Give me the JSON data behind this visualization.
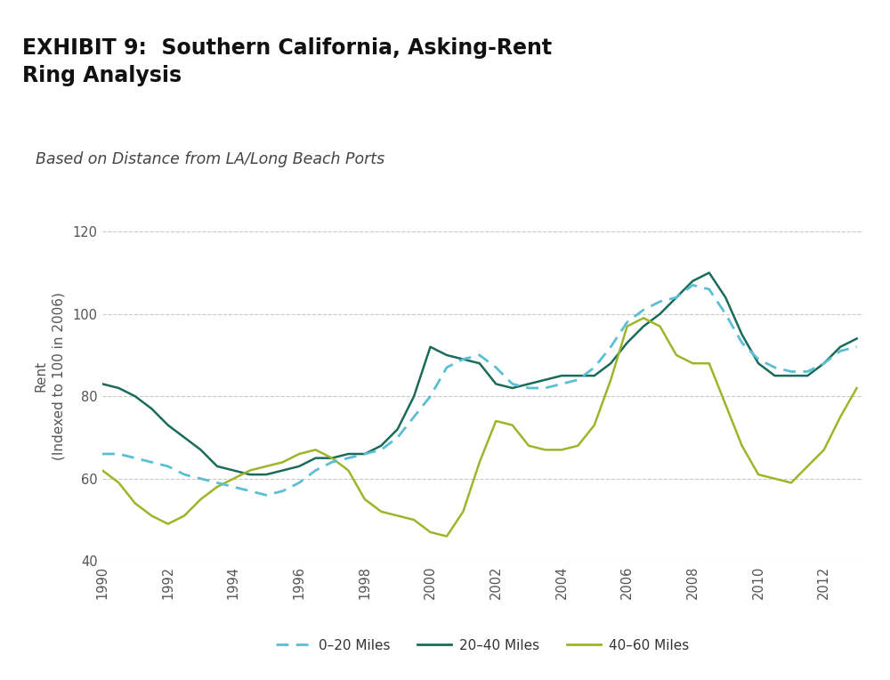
{
  "title_main": "EXHIBIT 9:  Southern California, Asking-Rent\nRing Analysis",
  "subtitle": "Based on Distance from LA/Long Beach Ports",
  "ylabel": "Rent\n(Indexed to 100 in 2006)",
  "ylim": [
    40,
    130
  ],
  "yticks": [
    40,
    60,
    80,
    100,
    120
  ],
  "xlim": [
    1990,
    2013.2
  ],
  "xticks": [
    1990,
    1992,
    1994,
    1996,
    1998,
    2000,
    2002,
    2004,
    2006,
    2008,
    2010,
    2012
  ],
  "bg_title": "#d8d8d8",
  "bg_figure": "#ffffff",
  "color_0_20": "#5bbfd4",
  "color_20_40": "#1a6b5c",
  "color_40_60": "#9db52a",
  "series_0_20": {
    "x": [
      1990,
      1990.5,
      1991,
      1991.5,
      1992,
      1992.5,
      1993,
      1993.5,
      1994,
      1994.5,
      1995,
      1995.5,
      1996,
      1996.5,
      1997,
      1997.5,
      1998,
      1998.5,
      1999,
      1999.5,
      2000,
      2000.5,
      2001,
      2001.5,
      2002,
      2002.5,
      2003,
      2003.5,
      2004,
      2004.5,
      2005,
      2005.5,
      2006,
      2006.5,
      2007,
      2007.5,
      2008,
      2008.5,
      2009,
      2009.5,
      2010,
      2010.5,
      2011,
      2011.5,
      2012,
      2012.5,
      2013
    ],
    "y": [
      66,
      66,
      65,
      64,
      63,
      61,
      60,
      59,
      58,
      57,
      56,
      57,
      59,
      62,
      64,
      65,
      66,
      67,
      70,
      75,
      80,
      87,
      89,
      90,
      87,
      83,
      82,
      82,
      83,
      84,
      87,
      92,
      98,
      101,
      103,
      104,
      107,
      106,
      100,
      93,
      89,
      87,
      86,
      86,
      88,
      91,
      92
    ]
  },
  "series_20_40": {
    "x": [
      1990,
      1990.5,
      1991,
      1991.5,
      1992,
      1992.5,
      1993,
      1993.5,
      1994,
      1994.5,
      1995,
      1995.5,
      1996,
      1996.5,
      1997,
      1997.5,
      1998,
      1998.5,
      1999,
      1999.5,
      2000,
      2000.5,
      2001,
      2001.5,
      2002,
      2002.5,
      2003,
      2003.5,
      2004,
      2004.5,
      2005,
      2005.5,
      2006,
      2006.5,
      2007,
      2007.5,
      2008,
      2008.5,
      2009,
      2009.5,
      2010,
      2010.5,
      2011,
      2011.5,
      2012,
      2012.5,
      2013
    ],
    "y": [
      83,
      82,
      80,
      77,
      73,
      70,
      67,
      63,
      62,
      61,
      61,
      62,
      63,
      65,
      65,
      66,
      66,
      68,
      72,
      80,
      92,
      90,
      89,
      88,
      83,
      82,
      83,
      84,
      85,
      85,
      85,
      88,
      93,
      97,
      100,
      104,
      108,
      110,
      104,
      95,
      88,
      85,
      85,
      85,
      88,
      92,
      94
    ]
  },
  "series_40_60": {
    "x": [
      1990,
      1990.5,
      1991,
      1991.5,
      1992,
      1992.5,
      1993,
      1993.5,
      1994,
      1994.5,
      1995,
      1995.5,
      1996,
      1996.5,
      1997,
      1997.5,
      1998,
      1998.5,
      1999,
      1999.5,
      2000,
      2000.5,
      2001,
      2001.5,
      2002,
      2002.5,
      2003,
      2003.5,
      2004,
      2004.5,
      2005,
      2005.5,
      2006,
      2006.5,
      2007,
      2007.5,
      2008,
      2008.5,
      2009,
      2009.5,
      2010,
      2010.5,
      2011,
      2011.5,
      2012,
      2012.5,
      2013
    ],
    "y": [
      62,
      59,
      54,
      51,
      49,
      51,
      55,
      58,
      60,
      62,
      63,
      64,
      66,
      67,
      65,
      62,
      55,
      52,
      51,
      50,
      47,
      46,
      52,
      64,
      74,
      73,
      68,
      67,
      67,
      68,
      73,
      84,
      97,
      99,
      97,
      90,
      88,
      88,
      78,
      68,
      61,
      60,
      59,
      63,
      67,
      75,
      82
    ]
  },
  "legend_labels": [
    "0–20 Miles",
    "20–40 Miles",
    "40–60 Miles"
  ]
}
